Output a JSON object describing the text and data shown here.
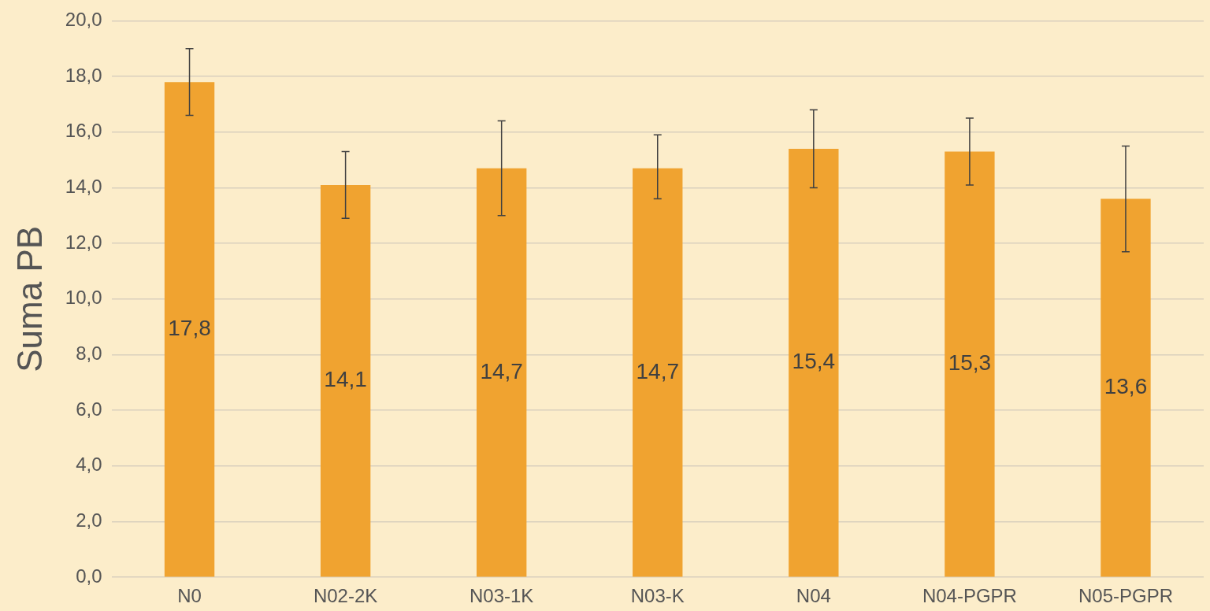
{
  "chart_data": {
    "type": "bar",
    "ylabel": "Suma PB",
    "categories": [
      "N0",
      "N02-2K",
      "N03-1K",
      "N03-K",
      "N04",
      "N04-PGPR",
      "N05-PGPR"
    ],
    "values": [
      17.8,
      14.1,
      14.7,
      14.7,
      15.4,
      15.3,
      13.6
    ],
    "value_labels": [
      "17,8",
      "14,1",
      "14,7",
      "14,7",
      "15,4",
      "15,3",
      "13,6"
    ],
    "errors": [
      [
        16.6,
        19.0
      ],
      [
        12.9,
        15.3
      ],
      [
        13.0,
        16.4
      ],
      [
        13.6,
        15.9
      ],
      [
        14.0,
        16.8
      ],
      [
        14.1,
        16.5
      ],
      [
        11.7,
        15.5
      ]
    ],
    "color": "#f0a330",
    "ylim": [
      0,
      20
    ],
    "yticks": [
      {
        "value": 0,
        "label": "0,0"
      },
      {
        "value": 2,
        "label": "2,0"
      },
      {
        "value": 4,
        "label": "4,0"
      },
      {
        "value": 6,
        "label": "6,0"
      },
      {
        "value": 8,
        "label": "8,0"
      },
      {
        "value": 10,
        "label": "10,0"
      },
      {
        "value": 12,
        "label": "12,0"
      },
      {
        "value": 14,
        "label": "14,0"
      },
      {
        "value": 16,
        "label": "16,0"
      },
      {
        "value": 18,
        "label": "18,0"
      },
      {
        "value": 20,
        "label": "20,0"
      }
    ],
    "grid": "y",
    "legend": false
  }
}
